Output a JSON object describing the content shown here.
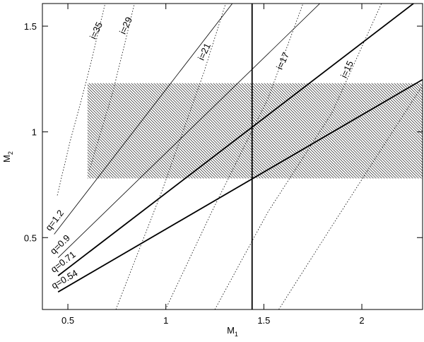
{
  "chart_data": {
    "type": "mass-diagram",
    "x_label": "M",
    "x_label_sub": "1",
    "y_label": "M",
    "y_label_sub": "2",
    "xlim": [
      0.37,
      2.31
    ],
    "ylim": [
      0.16,
      1.607
    ],
    "xticks": [
      0.5,
      1,
      1.5,
      2
    ],
    "yticks": [
      0.5,
      1,
      1.5
    ],
    "band": {
      "x0": 0.6,
      "y": [
        0.78,
        1.23
      ]
    },
    "vline": 1.44,
    "q_lines": [
      {
        "name": "q=1.2",
        "q": 1.2,
        "x_start": 0.43,
        "width": 0.8
      },
      {
        "name": "q=0.9",
        "q": 0.9,
        "x_start": 0.45,
        "width": 0.8
      },
      {
        "name": "q=0.71",
        "q": 0.71,
        "x_start": 0.45,
        "width": 1.8
      },
      {
        "name": "q=0.54",
        "q": 0.54,
        "x_start": 0.45,
        "width": 1.8
      }
    ],
    "i_curves": [
      {
        "name": "i=35",
        "m1": [
          0.446,
          0.51,
          0.6,
          0.69
        ],
        "m2": [
          0.7,
          0.95,
          1.26,
          1.607
        ]
      },
      {
        "name": "i=29",
        "m1": [
          0.61,
          0.73,
          0.84
        ],
        "m2": [
          0.82,
          1.19,
          1.607
        ]
      },
      {
        "name": "i=21",
        "m1": [
          0.745,
          0.98,
          1.197,
          1.305
        ],
        "m2": [
          0.16,
          0.72,
          1.29,
          1.607
        ]
      },
      {
        "name": "i=17",
        "m1": [
          0.998,
          1.233,
          1.52,
          1.7
        ],
        "m2": [
          0.16,
          0.62,
          1.155,
          1.607
        ]
      },
      {
        "name": "i=15",
        "m1": [
          1.25,
          1.52,
          1.847,
          2.1
        ],
        "m2": [
          0.16,
          0.62,
          1.089,
          1.607
        ]
      },
      {
        "name": null,
        "m1": [
          1.576,
          1.847,
          2.17,
          2.31
        ],
        "m2": [
          0.16,
          0.554,
          1.02,
          1.22
        ]
      }
    ]
  }
}
